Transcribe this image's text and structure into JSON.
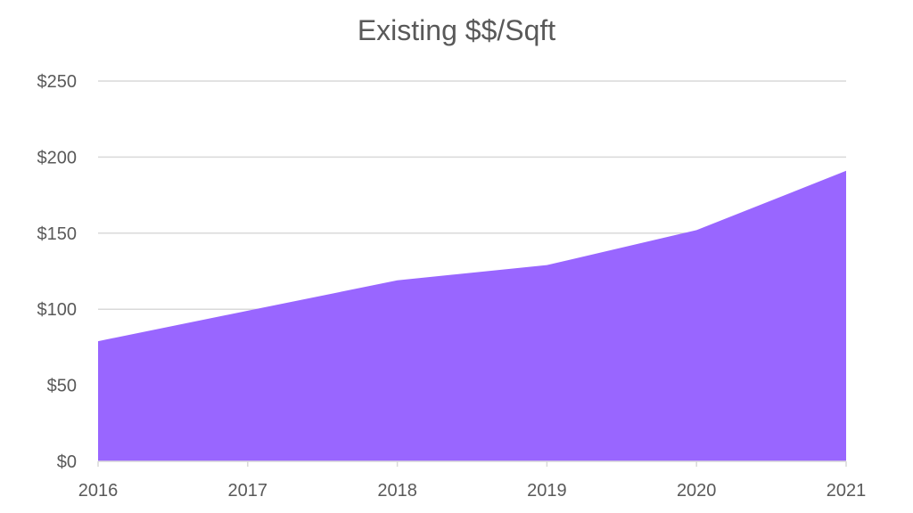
{
  "chart_data": {
    "type": "area",
    "title": "Existing $$/Sqft",
    "xlabel": "",
    "ylabel": "",
    "categories": [
      "2016",
      "2017",
      "2018",
      "2019",
      "2020",
      "2021"
    ],
    "values": [
      79,
      99,
      119,
      129,
      152,
      191
    ],
    "ylim": [
      0,
      250
    ],
    "yticks": [
      0,
      50,
      100,
      150,
      200,
      250
    ],
    "ytick_labels": [
      "$0",
      "$50",
      "$100",
      "$150",
      "$200",
      "$250"
    ],
    "grid": true,
    "legend": "none",
    "colors": {
      "fill": "#9966ff",
      "grid": "#d9d9d9",
      "axis": "#d9d9d9",
      "text": "#595959"
    }
  }
}
